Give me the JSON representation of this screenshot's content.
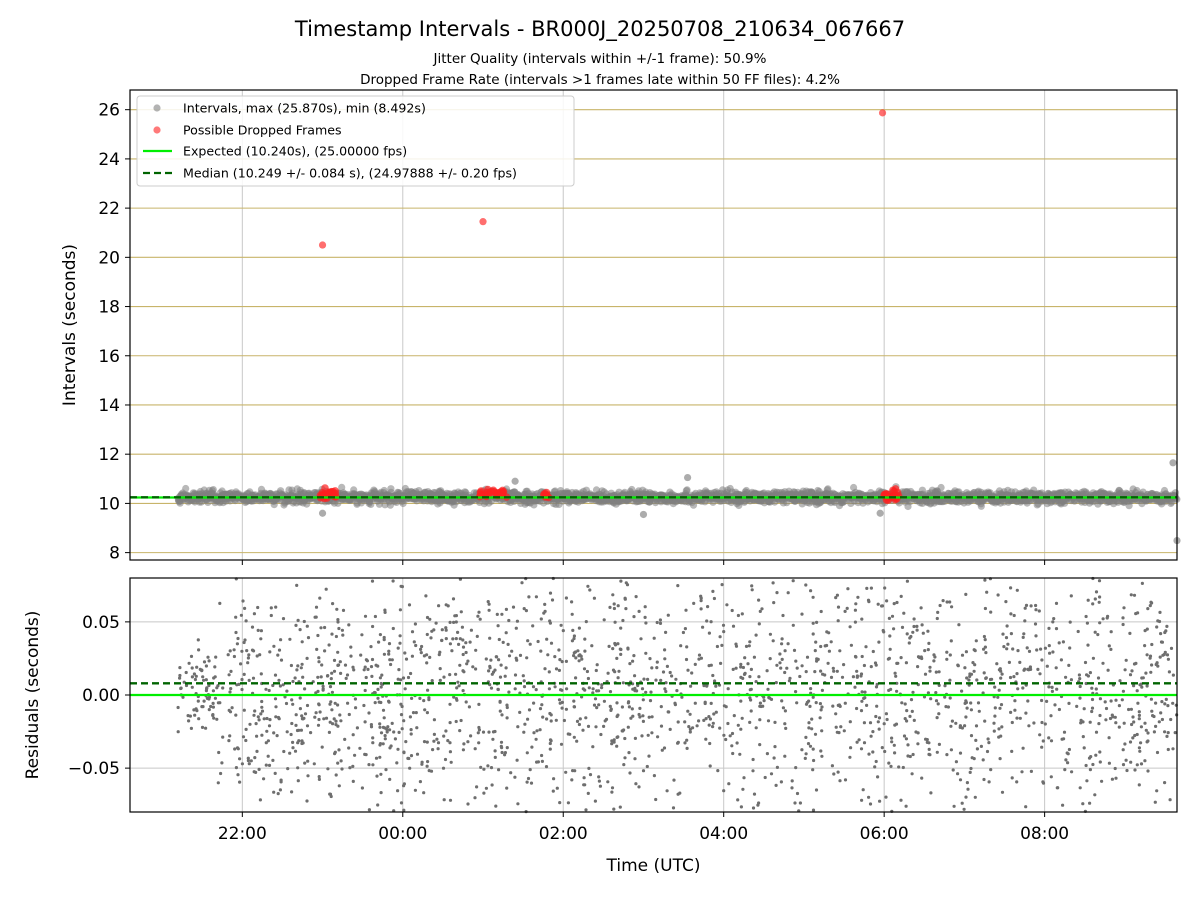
{
  "title": "Timestamp Intervals - BR000J_20250708_210634_067667",
  "subtitle_lines": [
    "Jitter Quality (intervals within +/-1 frame): 50.9%",
    "Dropped Frame Rate (intervals >1 frames late within 50 FF files): 4.2%"
  ],
  "colors": {
    "intervals": "#808080",
    "dropped": "#ff2020",
    "expected": "#00ee00",
    "median": "#006400",
    "top_grid": "#c8b46a",
    "vertical_grid": "#c8c8c8",
    "residual_grid": "#c8c8c8"
  },
  "chart_data": [
    {
      "type": "scatter",
      "panel": "top",
      "ylabel": "Intervals (seconds)",
      "x_range_hours": [
        -3.4,
        9.65
      ],
      "ylim": [
        7.7,
        26.8
      ],
      "y_ticks": [
        8,
        10,
        12,
        14,
        16,
        18,
        20,
        22,
        24,
        26
      ],
      "grid": "on",
      "legend_position": "top-left",
      "legend": [
        "Intervals, max (25.870s), min (8.492s)",
        "Possible Dropped Frames",
        "Expected (10.240s), (25.00000 fps)",
        "Median (10.249 +/- 0.084 s), (24.97888 +/- 0.20 fps)"
      ],
      "series": [
        {
          "name": "Intervals, max (25.870s), min (8.492s)",
          "kind": "scatter",
          "x_range_hours": [
            -2.8,
            9.65
          ],
          "y_center": 10.25,
          "y_spread": 0.12,
          "max": 25.87,
          "min": 8.492,
          "notable_points": [
            {
              "x": -1.0,
              "y": 9.6
            },
            {
              "x": 3.0,
              "y": 9.55
            },
            {
              "x": 5.95,
              "y": 9.6
            },
            {
              "x": 1.4,
              "y": 10.9
            },
            {
              "x": 3.55,
              "y": 11.05
            },
            {
              "x": 9.6,
              "y": 11.65
            },
            {
              "x": 9.65,
              "y": 8.49
            }
          ]
        },
        {
          "name": "Possible Dropped Frames",
          "kind": "scatter",
          "outliers": [
            {
              "x": -1.0,
              "y": 20.5
            },
            {
              "x": 1.0,
              "y": 21.45
            },
            {
              "x": 5.98,
              "y": 25.87
            }
          ],
          "clusters": [
            {
              "x_start": -1.03,
              "x_end": -0.82,
              "y_center": 10.35,
              "count": 26
            },
            {
              "x_start": 0.95,
              "x_end": 1.3,
              "y_center": 10.38,
              "count": 30
            },
            {
              "x_start": 1.75,
              "x_end": 1.85,
              "y_center": 10.38,
              "count": 8
            },
            {
              "x_start": 6.0,
              "x_end": 6.2,
              "y_center": 10.33,
              "count": 24
            }
          ]
        },
        {
          "name": "Expected (10.240s), (25.00000 fps)",
          "kind": "hline",
          "y": 10.24
        },
        {
          "name": "Median (10.249 +/- 0.084 s), (24.97888 +/- 0.20 fps)",
          "kind": "hline-dashed",
          "y": 10.249
        }
      ]
    },
    {
      "type": "scatter",
      "panel": "bottom",
      "ylabel": "Residuals (seconds)",
      "xlabel": "Time (UTC)",
      "x_range_hours": [
        -3.4,
        9.65
      ],
      "ylim": [
        -0.08,
        0.08
      ],
      "y_ticks": [
        0.05,
        0.0,
        -0.05
      ],
      "y_tick_labels": [
        "0.05",
        "0.00",
        "−0.05"
      ],
      "x_ticks_hours": [
        -2,
        0,
        2,
        4,
        6,
        8
      ],
      "x_tick_labels": [
        "22:00",
        "00:00",
        "02:00",
        "04:00",
        "06:00",
        "08:00"
      ],
      "grid": "on",
      "series": [
        {
          "kind": "scatter",
          "x_range_hours": [
            -2.8,
            9.65
          ],
          "early_segment": {
            "x_end": -2.3,
            "y_center": 0.005,
            "y_spread": 0.012
          },
          "y_spread": 0.045,
          "count": 2200
        },
        {
          "kind": "hline",
          "y": 0.0
        },
        {
          "kind": "hline-dashed",
          "y": 0.008
        }
      ]
    }
  ]
}
